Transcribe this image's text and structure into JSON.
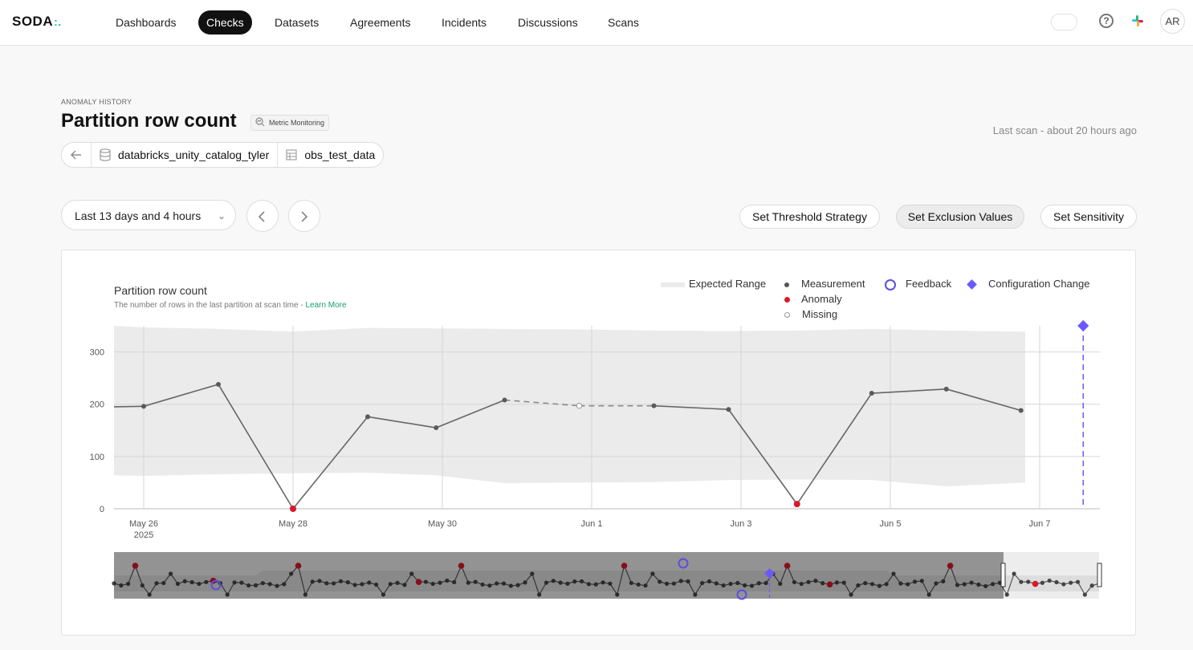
{
  "app": {
    "logo": "SODA",
    "logo_suffix": ":."
  },
  "nav": {
    "items": [
      {
        "label": "Dashboards",
        "active": false
      },
      {
        "label": "Checks",
        "active": true
      },
      {
        "label": "Datasets",
        "active": false
      },
      {
        "label": "Agreements",
        "active": false
      },
      {
        "label": "Incidents",
        "active": false
      },
      {
        "label": "Discussions",
        "active": false
      },
      {
        "label": "Scans",
        "active": false
      }
    ],
    "help_glyph": "?",
    "avatar_initials": "AR"
  },
  "header": {
    "eyebrow": "ANOMALY HISTORY",
    "title": "Partition row count",
    "badge": "Metric Monitoring",
    "last_scan": "Last scan - about 20 hours ago"
  },
  "breadcrumb": {
    "back_icon": "arrow-left-icon",
    "datasource": "databricks_unity_catalog_tyler",
    "dataset": "obs_test_data"
  },
  "controls": {
    "time_range": "Last 13 days and 4 hours",
    "buttons": {
      "threshold": "Set Threshold Strategy",
      "exclusion": "Set Exclusion Values",
      "sensitivity": "Set Sensitivity"
    }
  },
  "chart": {
    "title": "Partition row count",
    "subtitle": "The number of rows in the last partition at scan time - ",
    "learn_more": "Learn More",
    "legend": {
      "expected_range": "Expected Range",
      "measurement": "Measurement",
      "feedback": "Feedback",
      "config_change": "Configuration Change",
      "anomaly": "Anomaly",
      "missing": "Missing"
    },
    "colors": {
      "band": "#ebebeb",
      "line": "#666666",
      "anomaly": "#d9192a",
      "feedback": "#5b4fe0",
      "config": "#6a5af9",
      "overview_bg": "#9a9a9a"
    }
  },
  "chart_data": {
    "type": "line",
    "title": "Partition row count",
    "x_ticks": [
      "May 26",
      "May 28",
      "May 30",
      "Jun 1",
      "Jun 3",
      "Jun 5",
      "Jun 7"
    ],
    "x_tick_year": "2025",
    "y_ticks": [
      0,
      100,
      200,
      300
    ],
    "ylim": [
      0,
      350
    ],
    "grid": true,
    "series": [
      {
        "name": "Measurement",
        "points": [
          {
            "x": "May 25 18:00",
            "y": 195
          },
          {
            "x": "May 26 00:00",
            "y": 196,
            "kind": "measurement"
          },
          {
            "x": "May 27 00:00",
            "y": 238,
            "kind": "measurement"
          },
          {
            "x": "May 28 00:00",
            "y": 0,
            "kind": "anomaly"
          },
          {
            "x": "May 29 00:00",
            "y": 176,
            "kind": "measurement"
          },
          {
            "x": "May 29 22:00",
            "y": 155,
            "kind": "measurement"
          },
          {
            "x": "May 30 20:00",
            "y": 208,
            "kind": "measurement"
          },
          {
            "x": "May 31 20:00",
            "y": 197,
            "kind": "missing"
          },
          {
            "x": "Jun 1 20:00",
            "y": 197,
            "kind": "measurement"
          },
          {
            "x": "Jun 2 20:00",
            "y": 190,
            "kind": "measurement"
          },
          {
            "x": "Jun 3 18:00",
            "y": 9,
            "kind": "anomaly"
          },
          {
            "x": "Jun 4 18:00",
            "y": 221,
            "kind": "measurement"
          },
          {
            "x": "Jun 5 18:00",
            "y": 229,
            "kind": "measurement"
          },
          {
            "x": "Jun 6 18:00",
            "y": 188,
            "kind": "measurement"
          }
        ]
      }
    ],
    "expected_range": {
      "upper": [
        350,
        347,
        344,
        339,
        346,
        345,
        344,
        343,
        341,
        340,
        341,
        344,
        341,
        339
      ],
      "lower": [
        64,
        63,
        66,
        68,
        69,
        64,
        49,
        50,
        51,
        55,
        56,
        55,
        43,
        50
      ]
    },
    "configuration_change": {
      "x": "Jun 7 14:00",
      "y": 350
    }
  }
}
